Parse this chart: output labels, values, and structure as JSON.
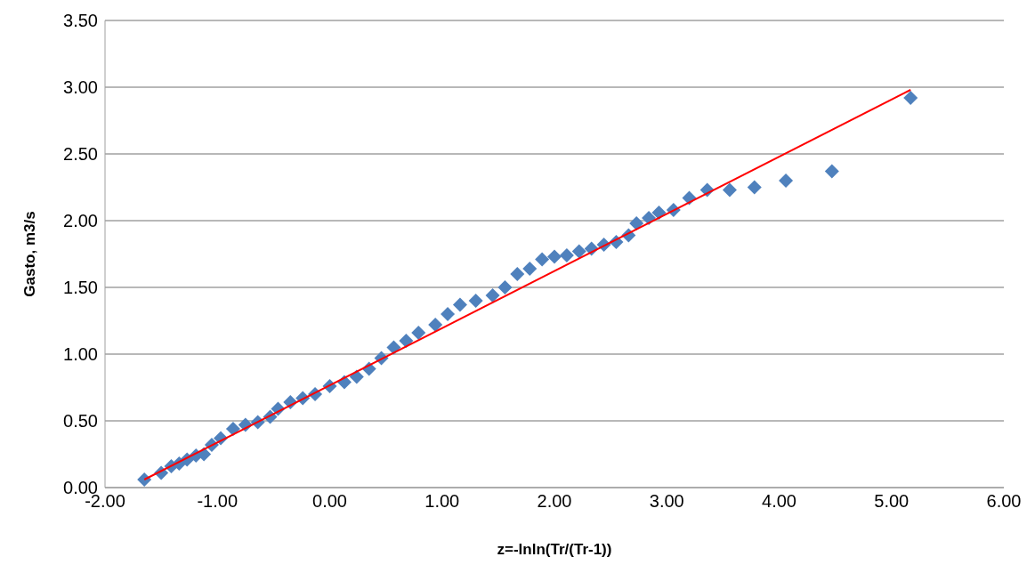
{
  "chart_data": {
    "type": "scatter",
    "xlabel": "z=-lnln(Tr/(Tr-1))",
    "ylabel": "Gasto, m3/s",
    "xlim": [
      -2,
      6
    ],
    "xticks": [
      {
        "value": -2,
        "label": "-2.00"
      },
      {
        "value": -1,
        "label": "-1.00"
      },
      {
        "value": 0,
        "label": "0.00"
      },
      {
        "value": 1,
        "label": "1.00"
      },
      {
        "value": 2,
        "label": "2.00"
      },
      {
        "value": 3,
        "label": "3.00"
      },
      {
        "value": 4,
        "label": "4.00"
      },
      {
        "value": 5,
        "label": "5.00"
      },
      {
        "value": 6,
        "label": "6.00"
      }
    ],
    "ylim": [
      0,
      3.5
    ],
    "yticks": [
      {
        "value": 0,
        "label": "0.00"
      },
      {
        "value": 0.5,
        "label": "0.50"
      },
      {
        "value": 1,
        "label": "1.00"
      },
      {
        "value": 1.5,
        "label": "1.50"
      },
      {
        "value": 2,
        "label": "2.00"
      },
      {
        "value": 2.5,
        "label": "2.50"
      },
      {
        "value": 3,
        "label": "3.00"
      },
      {
        "value": 3.5,
        "label": "3.50"
      }
    ],
    "grid": "y",
    "legend": false,
    "marker": "diamond",
    "series": [
      {
        "color": "#4f81bd",
        "x": [
          -1.65,
          -1.5,
          -1.41,
          -1.34,
          -1.27,
          -1.19,
          -1.12,
          -1.05,
          -0.97,
          -0.86,
          -0.75,
          -0.64,
          -0.53,
          -0.46,
          -0.35,
          -0.24,
          -0.13,
          0,
          0.13,
          0.24,
          0.35,
          0.46,
          0.57,
          0.68,
          0.79,
          0.94,
          1.05,
          1.16,
          1.3,
          1.45,
          1.56,
          1.67,
          1.78,
          1.89,
          2,
          2.11,
          2.22,
          2.33,
          2.44,
          2.55,
          2.66,
          2.73,
          2.84,
          2.93,
          3.06,
          3.2,
          3.36,
          3.56,
          3.78,
          4.06,
          4.47,
          5.17
        ],
        "values": [
          0.06,
          0.11,
          0.16,
          0.18,
          0.21,
          0.24,
          0.25,
          0.32,
          0.37,
          0.44,
          0.47,
          0.49,
          0.53,
          0.59,
          0.64,
          0.67,
          0.7,
          0.76,
          0.79,
          0.83,
          0.89,
          0.97,
          1.05,
          1.1,
          1.16,
          1.22,
          1.3,
          1.37,
          1.4,
          1.44,
          1.5,
          1.6,
          1.64,
          1.71,
          1.73,
          1.74,
          1.77,
          1.79,
          1.82,
          1.84,
          1.89,
          1.98,
          2.02,
          2.06,
          2.08,
          2.17,
          2.23,
          2.23,
          2.25,
          2.3,
          2.37,
          2.92
        ]
      },
      {
        "type": "line",
        "color": "#ff0000",
        "marker": "none",
        "x": [
          -1.65,
          5.17
        ],
        "values": [
          0.06,
          2.98
        ]
      }
    ]
  }
}
